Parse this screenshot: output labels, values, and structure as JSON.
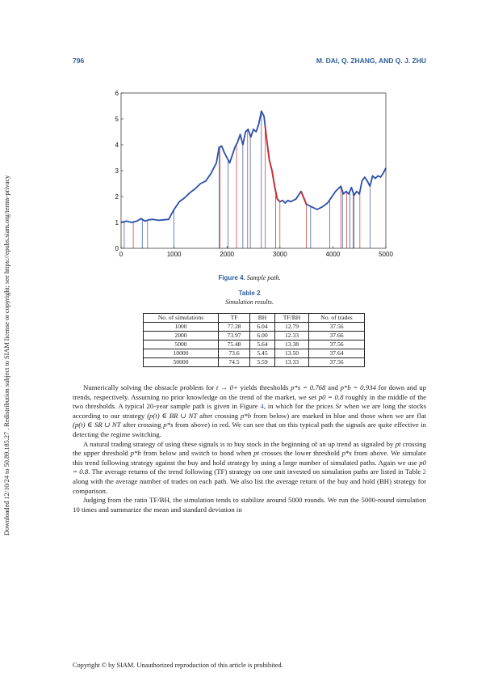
{
  "header": {
    "page_number": "796",
    "authors": "M. DAI, Q. ZHANG, AND Q. J. ZHU"
  },
  "side_note": "Downloaded 12/10/24 to 50.89.185.27 . Redistribution subject to SIAM license or copyright; see https://epubs.siam.org/terms-privacy",
  "figure": {
    "label": "Figure 4.",
    "caption": "Sample path."
  },
  "chart_data": {
    "type": "line",
    "title": "",
    "xlabel": "",
    "ylabel": "",
    "xlim": [
      0,
      5000
    ],
    "ylim": [
      0,
      6
    ],
    "xticks": [
      0,
      1000,
      2000,
      3000,
      4000,
      5000
    ],
    "yticks": [
      0,
      1,
      2,
      3,
      4,
      5,
      6
    ],
    "grid": false,
    "series": [
      {
        "color": "#2a4fa8",
        "x": [
          0,
          100,
          200,
          300,
          380,
          450,
          520,
          600,
          700,
          800,
          900,
          1000,
          1100,
          1200,
          1300,
          1400,
          1500,
          1600,
          1700,
          1800,
          1850,
          1900,
          1950,
          2000,
          2050,
          2100,
          2150,
          2200,
          2250,
          2300,
          2350,
          2400,
          2450,
          2500,
          2550,
          2600,
          2650,
          2700,
          2750,
          2800,
          2850,
          2900,
          2950,
          3000,
          3050,
          3100,
          3150,
          3200,
          3300,
          3400,
          3500,
          3600,
          3700,
          3800,
          3900,
          4000,
          4050,
          4100,
          4150,
          4200,
          4250,
          4300,
          4350,
          4400,
          4450,
          4500,
          4550,
          4600,
          4650,
          4700,
          4750,
          4800,
          4850,
          4900,
          4950,
          5000
        ],
        "y": [
          1.0,
          1.05,
          1.0,
          1.05,
          1.15,
          1.05,
          1.1,
          1.12,
          1.08,
          1.1,
          1.12,
          1.5,
          1.8,
          1.95,
          2.15,
          2.3,
          2.5,
          2.6,
          2.9,
          3.3,
          3.9,
          3.95,
          3.7,
          3.5,
          3.3,
          3.6,
          3.9,
          4.1,
          4.4,
          4.0,
          4.5,
          4.6,
          4.3,
          4.6,
          4.5,
          4.8,
          5.3,
          5.1,
          4.2,
          3.4,
          3.0,
          2.4,
          1.9,
          1.8,
          1.85,
          1.75,
          1.85,
          1.8,
          1.9,
          2.2,
          1.7,
          1.6,
          1.5,
          1.6,
          1.75,
          2.05,
          2.2,
          2.3,
          2.4,
          2.1,
          2.2,
          2.1,
          2.35,
          2.05,
          2.2,
          2.1,
          2.6,
          2.75,
          2.6,
          2.4,
          2.8,
          2.7,
          2.8,
          2.75,
          2.9,
          3.1
        ]
      }
    ],
    "red_segments": [
      [
        2720,
        3000
      ],
      [
        3400,
        3500
      ]
    ],
    "buy_signals_x": [
      60,
      400,
      1000,
      1850,
      2020,
      2300,
      2440,
      2650,
      2920,
      3580,
      3940,
      4180,
      4320,
      4400,
      4700
    ],
    "sell_signals_x": [
      230,
      500,
      1870,
      2180,
      2390,
      2720,
      3000,
      3500,
      4150,
      4260,
      4380,
      4510
    ]
  },
  "table": {
    "label": "Table 2",
    "caption": "Simulation results.",
    "headers": [
      "No. of simulations",
      "TF",
      "BH",
      "TF/BH",
      "No. of trades"
    ],
    "rows": [
      [
        "1000",
        "77.28",
        "6.04",
        "12.79",
        "37.56"
      ],
      [
        "2000",
        "73.97",
        "6.00",
        "12.33",
        "37.66"
      ],
      [
        "5000",
        "75.48",
        "5.64",
        "13.38",
        "37.56"
      ],
      [
        "10000",
        "73.6",
        "5.45",
        "13.50",
        "37.64"
      ],
      [
        "50000",
        "74.5",
        "5.59",
        "13.33",
        "37.56"
      ]
    ]
  },
  "body": {
    "p1": [
      "Numerically solving the obstacle problem for ",
      "t → 0+",
      " yields thresholds ",
      "p*s = 0.768",
      " and ",
      "p*b = 0.934",
      " for down and up trends, respectively. Assuming no prior knowledge on the trend of the market, we set ",
      "p0 = 0.8",
      " roughly in the middle of the two thresholds. A typical 20-year sample path is given in Figure ",
      "4",
      ", in which for the prices ",
      "Sr",
      " when we are long the stocks according to our strategy ",
      "(p(t) ∈ BR ∪ NT",
      " after crossing ",
      "p*b",
      " from below) are marked in blue and those when we are flat ",
      "(p(t) ∈ SR ∪ NT",
      " after crossing ",
      "p*s",
      " from above) in red. We can see that on this typical path the signals are quite effective in detecting the regime switching."
    ],
    "p2": [
      "A natural trading strategy of using these signals is to buy stock in the beginning of an up trend as signaled by ",
      "pt",
      " crossing the upper threshold ",
      "p*b",
      " from below and switch to bond when ",
      "pt",
      " crosses the lower threshold ",
      "p*s",
      " from above. We simulate this trend following strategy against the buy and hold strategy by using a large number of simulated paths. Again we use ",
      "p0 = 0.8",
      ". The average returns of the trend following (TF) strategy on one unit invested on simulation paths are listed in Table ",
      "2",
      " along with the average number of trades on each path. We also list the average return of the buy and hold (BH) strategy for comparison."
    ],
    "p3": "Judging from the ratio TF/BH, the simulation tends to stabilize around 5000 rounds. We run the 5000-round simulation 10 times and summarize the mean and standard deviation in"
  },
  "copyright": "Copyright © by SIAM. Unauthorized reproduction of this article is prohibited."
}
